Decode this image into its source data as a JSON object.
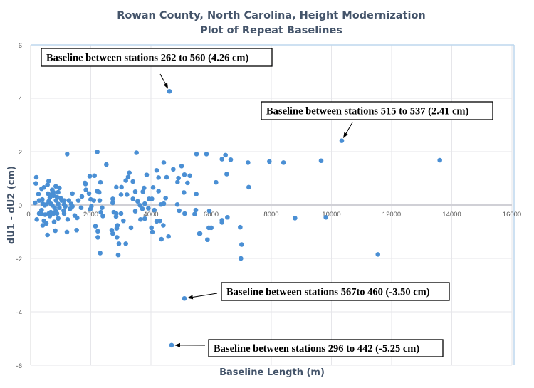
{
  "chart_data": {
    "type": "scatter",
    "title": "Rowan County, North Carolina, Height Modernization",
    "subtitle": "Plot of Repeat Baselines",
    "xlabel": "Baseline Length (m)",
    "ylabel": "dU1 - dU2 (cm)",
    "xlim": [
      0,
      16000
    ],
    "ylim": [
      -6,
      6
    ],
    "xticks": [
      0,
      2000,
      4000,
      6000,
      8000,
      10000,
      12000,
      14000,
      16000
    ],
    "yticks": [
      -6,
      -4,
      -2,
      0,
      2,
      4,
      6
    ],
    "grid": true,
    "legend": "none",
    "color": "#4a8fd4",
    "points": [
      [
        1215,
        1.91
      ],
      [
        2217,
        1.99
      ],
      [
        3519,
        1.96
      ],
      [
        2517,
        1.52
      ],
      [
        189,
        1.04
      ],
      [
        174,
        0.81
      ],
      [
        260,
        0.41
      ],
      [
        150,
        0.08
      ],
      [
        363,
        0.61
      ],
      [
        442,
        0.66
      ],
      [
        600,
        0.9
      ],
      [
        560,
        0.76
      ],
      [
        718,
        0.57
      ],
      [
        836,
        0.7
      ],
      [
        955,
        0.64
      ],
      [
        915,
        0.48
      ],
      [
        994,
        0.26
      ],
      [
        1112,
        0.17
      ],
      [
        1270,
        0.17
      ],
      [
        1389,
        0.43
      ],
      [
        1349,
        0.04
      ],
      [
        1586,
        0.17
      ],
      [
        1704,
        0.32
      ],
      [
        1823,
        0.79
      ],
      [
        1807,
        0.83
      ],
      [
        1838,
        0.57
      ],
      [
        1965,
        1.08
      ],
      [
        2122,
        1.1
      ],
      [
        1941,
        0.43
      ],
      [
        1996,
        0.21
      ],
      [
        2099,
        0.17
      ],
      [
        2217,
        0.52
      ],
      [
        2280,
        0.48
      ],
      [
        2320,
        0.85
      ],
      [
        2296,
        0.17
      ],
      [
        2375,
        -0.1
      ],
      [
        2336,
        -0.27
      ],
      [
        2399,
        -0.41
      ],
      [
        2730,
        0.23
      ],
      [
        2730,
        0.08
      ],
      [
        2848,
        0.67
      ],
      [
        3022,
        0.67
      ],
      [
        3006,
        0.39
      ],
      [
        3203,
        0.39
      ],
      [
        3164,
        0.92
      ],
      [
        3242,
        1.05
      ],
      [
        3282,
        1.21
      ],
      [
        3400,
        0.88
      ],
      [
        3479,
        0.5
      ],
      [
        3400,
        0.23
      ],
      [
        3558,
        0.14
      ],
      [
        3637,
        -0.01
      ],
      [
        3732,
        0.5
      ],
      [
        3771,
        0.64
      ],
      [
        3858,
        1.13
      ],
      [
        3937,
        0.23
      ],
      [
        4032,
        0.23
      ],
      [
        3795,
        0.05
      ],
      [
        3913,
        -0.12
      ],
      [
        3716,
        -0.14
      ],
      [
        3479,
        -0.23
      ],
      [
        3795,
        -0.51
      ],
      [
        3653,
        -0.54
      ],
      [
        4071,
        0.66
      ],
      [
        4253,
        0.52
      ],
      [
        4190,
        1.3
      ],
      [
        4253,
        1.03
      ],
      [
        4426,
        1.59
      ],
      [
        4521,
        1.04
      ],
      [
        4489,
        0.26
      ],
      [
        4332,
        0.02
      ],
      [
        4426,
        0.05
      ],
      [
        4742,
        1.34
      ],
      [
        5018,
        1.46
      ],
      [
        4884,
        0.86
      ],
      [
        4915,
        1.01
      ],
      [
        5113,
        1.14
      ],
      [
        5294,
        1.1
      ],
      [
        5215,
        0.83
      ],
      [
        5097,
        0.47
      ],
      [
        4876,
        0.02
      ],
      [
        4939,
        -0.21
      ],
      [
        5120,
        -0.32
      ],
      [
        5515,
        1.91
      ],
      [
        5846,
        1.91
      ],
      [
        5507,
        0.41
      ],
      [
        5491,
        -0.19
      ],
      [
        5452,
        -0.34
      ],
      [
        5633,
        -1.07
      ],
      [
        4111,
        -0.19
      ],
      [
        4190,
        -0.61
      ],
      [
        4300,
        -0.59
      ],
      [
        4411,
        -0.76
      ],
      [
        4348,
        -1.28
      ],
      [
        4584,
        -1.18
      ],
      [
        4016,
        -0.85
      ],
      [
        4048,
        -1.01
      ],
      [
        3337,
        -0.85
      ],
      [
        3164,
        -1.45
      ],
      [
        2935,
        -1.45
      ],
      [
        3085,
        -0.59
      ],
      [
        3006,
        -0.32
      ],
      [
        2848,
        -0.32
      ],
      [
        2769,
        -0.27
      ],
      [
        2887,
        -0.76
      ],
      [
        2864,
        -0.87
      ],
      [
        2698,
        -0.94
      ],
      [
        2730,
        -1.07
      ],
      [
        2872,
        -1.21
      ],
      [
        2911,
        -1.87
      ],
      [
        2312,
        -1.8
      ],
      [
        2233,
        -1.21
      ],
      [
        2233,
        -0.98
      ],
      [
        2154,
        -0.79
      ],
      [
        2840,
        -0.43
      ],
      [
        2020,
        -0.05
      ],
      [
        1981,
        -0.16
      ],
      [
        1546,
        -0.48
      ],
      [
        1467,
        -0.39
      ],
      [
        1530,
        -0.94
      ],
      [
        1231,
        -0.54
      ],
      [
        1207,
        -1.01
      ],
      [
        1112,
        -0.32
      ],
      [
        1097,
        -0.21
      ],
      [
        915,
        -0.5
      ],
      [
        836,
        -0.23
      ],
      [
        781,
        -0.63
      ],
      [
        820,
        -0.96
      ],
      [
        560,
        -1.12
      ],
      [
        521,
        -0.69
      ],
      [
        402,
        -0.76
      ],
      [
        442,
        -0.59
      ],
      [
        363,
        -0.32
      ],
      [
        308,
        -0.34
      ],
      [
        205,
        -0.54
      ],
      [
        481,
        -0.36
      ],
      [
        600,
        -0.32
      ],
      [
        670,
        -0.27
      ],
      [
        639,
        -0.41
      ],
      [
        757,
        -0.32
      ],
      [
        876,
        -0.32
      ],
      [
        521,
        0.02
      ],
      [
        402,
        0.05
      ],
      [
        670,
        0.05
      ],
      [
        600,
        0.14
      ],
      [
        718,
        -0.01
      ],
      [
        797,
        -0.1
      ],
      [
        284,
        0.17
      ],
      [
        387,
        0.21
      ],
      [
        466,
        -0.01
      ],
      [
        639,
        0.28
      ],
      [
        757,
        0.35
      ],
      [
        844,
        0.17
      ],
      [
        757,
        0.48
      ],
      [
        1034,
        0.17
      ],
      [
        1112,
        0.02
      ],
      [
        1152,
        -0.05
      ],
      [
        1310,
        -0.14
      ],
      [
        1389,
        -0.05
      ],
      [
        1680,
        -0.1
      ],
      [
        576,
        0.43
      ],
      [
        679,
        0.39
      ],
      [
        876,
        0.3
      ],
      [
        915,
        0.04
      ],
      [
        284,
        -0.32
      ],
      [
        363,
        -0.19
      ],
      [
        955,
        -0.1
      ],
      [
        6478,
        1.87
      ],
      [
        6360,
        1.72
      ],
      [
        6651,
        1.7
      ],
      [
        7227,
        1.59
      ],
      [
        7937,
        1.63
      ],
      [
        8406,
        1.59
      ],
      [
        6517,
        1.16
      ],
      [
        6162,
        0.85
      ],
      [
        7250,
        0.67
      ],
      [
        5941,
        -0.22
      ],
      [
        6360,
        -0.57
      ],
      [
        6360,
        -0.65
      ],
      [
        6541,
        -0.46
      ],
      [
        5925,
        -0.85
      ],
      [
        6004,
        -0.85
      ],
      [
        5610,
        -1.07
      ],
      [
        5878,
        -1.3
      ],
      [
        6967,
        -0.83
      ],
      [
        7014,
        -1.48
      ],
      [
        6990,
        -2.0
      ],
      [
        9657,
        1.66
      ],
      [
        13602,
        1.68
      ],
      [
        8789,
        -0.49
      ],
      [
        9815,
        -0.46
      ],
      [
        11544,
        -1.85
      ],
      [
        4615,
        4.26
      ],
      [
        10343,
        2.41
      ],
      [
        5112,
        -3.5
      ],
      [
        4686,
        -5.25
      ]
    ],
    "annotations": [
      {
        "text": "Baseline between stations 262 to 560 (4.26 cm)",
        "x": 4615,
        "y": 4.26
      },
      {
        "text": "Baseline between stations 515 to 537 (2.41 cm)",
        "x": 10343,
        "y": 2.41
      },
      {
        "text": "Baseline between stations 567to 460 (-3.50 cm)",
        "x": 5112,
        "y": -3.5
      },
      {
        "text": "Baseline between stations 296 to 442 (-5.25 cm)",
        "x": 4686,
        "y": -5.25
      }
    ]
  }
}
